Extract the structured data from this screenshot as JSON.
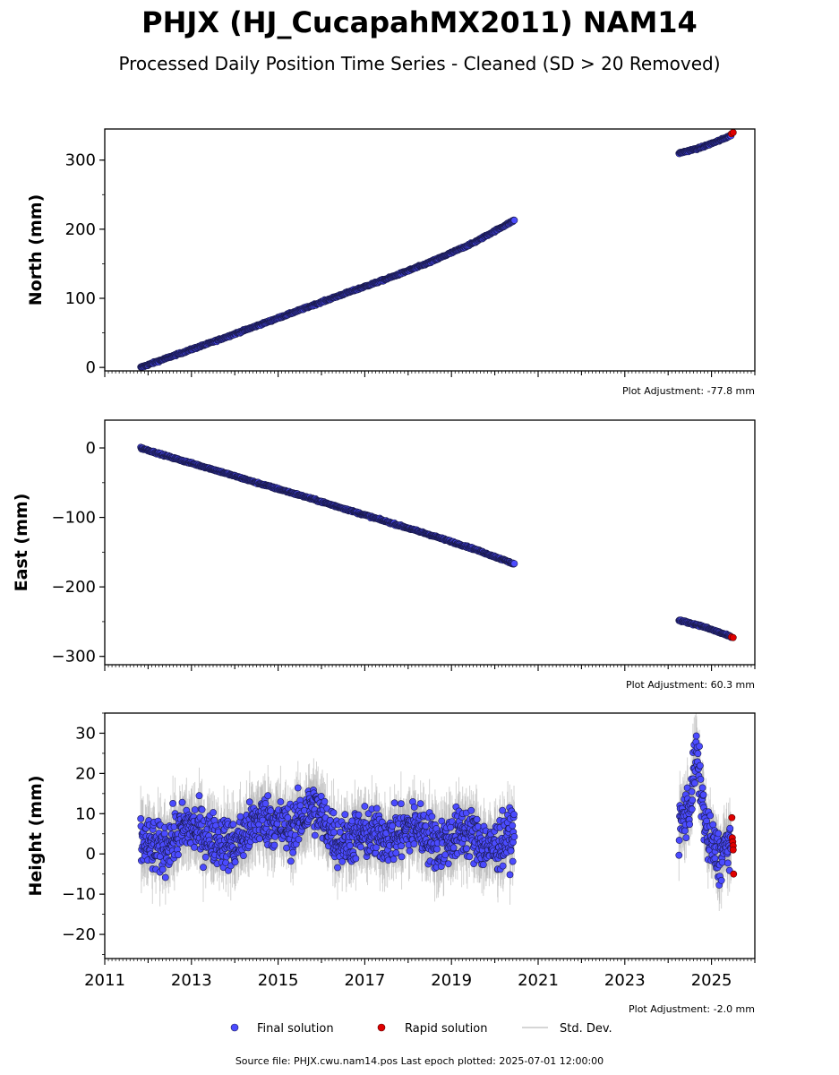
{
  "title": "PHJX (HJ_CucapahMX2011) NAM14",
  "subtitle": "Processed Daily Position Time Series - Cleaned (SD > 20 Removed)",
  "source": "Source file: PHJX.cwu.nam14.pos  Last epoch plotted: 2025-07-01 12:00:00",
  "legend": {
    "final": "Final solution",
    "rapid": "Rapid solution",
    "stddev": "Std. Dev."
  },
  "colors": {
    "final": "#4b4bff",
    "final_edge": "#1a1a4d",
    "rapid": "#e00000",
    "stddev": "#b5b5b5"
  },
  "chart_data": [
    {
      "type": "scatter",
      "ylabel": "North (mm)",
      "adjustment": "Plot Adjustment: -77.8 mm",
      "xlim": [
        2011,
        2026
      ],
      "ylim": [
        -5,
        345
      ],
      "yticks": [
        0,
        100,
        200,
        300
      ],
      "ytick_labels": [
        "0",
        "100",
        "200",
        "300"
      ],
      "series": [
        {
          "name": "Final solution",
          "x": [
            2011.83,
            2012.5,
            2013.5,
            2014.5,
            2015.5,
            2016.5,
            2017.5,
            2018.5,
            2019.5,
            2020.45,
            2024.25,
            2024.75,
            2025.25,
            2025.45
          ],
          "y": [
            0,
            15,
            37,
            60,
            83,
            106,
            128,
            152,
            180,
            213,
            310,
            318,
            330,
            336
          ]
        },
        {
          "name": "Rapid solution",
          "x": [
            2025.46,
            2025.5
          ],
          "y": [
            338,
            340
          ]
        }
      ]
    },
    {
      "type": "scatter",
      "ylabel": "East (mm)",
      "adjustment": "Plot Adjustment: 60.3 mm",
      "xlim": [
        2011,
        2026
      ],
      "ylim": [
        -312,
        40
      ],
      "yticks": [
        0,
        -100,
        -200,
        -300
      ],
      "ytick_labels": [
        "0",
        "−100",
        "−200",
        "−300"
      ],
      "series": [
        {
          "name": "Final solution",
          "x": [
            2011.83,
            2012.5,
            2013.5,
            2014.5,
            2015.5,
            2016.5,
            2017.5,
            2018.5,
            2019.5,
            2020.45,
            2024.25,
            2024.75,
            2025.25,
            2025.45
          ],
          "y": [
            0,
            -13,
            -31,
            -50,
            -68,
            -87,
            -106,
            -125,
            -145,
            -167,
            -248,
            -256,
            -267,
            -272
          ]
        },
        {
          "name": "Rapid solution",
          "x": [
            2025.46,
            2025.5
          ],
          "y": [
            -272,
            -273
          ]
        }
      ]
    },
    {
      "type": "scatter",
      "ylabel": "Height (mm)",
      "adjustment": "Plot Adjustment: -2.0 mm",
      "xlim": [
        2011,
        2026
      ],
      "ylim": [
        -26,
        35
      ],
      "yticks": [
        -20,
        -10,
        0,
        10,
        20,
        30
      ],
      "ytick_labels": [
        "−20",
        "−10",
        "0",
        "10",
        "20",
        "30"
      ],
      "series": [
        {
          "name": "Final solution",
          "x": [
            2011.83,
            2012.3,
            2012.9,
            2013.5,
            2014.0,
            2014.6,
            2015.3,
            2015.8,
            2016.4,
            2017.0,
            2017.6,
            2018.2,
            2018.7,
            2019.3,
            2019.9,
            2020.45,
            2024.25,
            2024.5,
            2024.65,
            2024.9,
            2025.2,
            2025.4
          ],
          "y": [
            3,
            1,
            7,
            4,
            2,
            9,
            6,
            12,
            3,
            5,
            4,
            7,
            2,
            6,
            1,
            5,
            7,
            12,
            25,
            4,
            -1,
            3
          ],
          "err": [
            4,
            5,
            5,
            4,
            5,
            5,
            5,
            5,
            4,
            5,
            5,
            5,
            4,
            5,
            5,
            4,
            5,
            5,
            6,
            5,
            4,
            4
          ]
        },
        {
          "name": "Rapid solution",
          "x": [
            2025.47,
            2025.48,
            2025.49,
            2025.5,
            2025.5,
            2025.51
          ],
          "y": [
            9,
            4,
            3,
            2,
            1,
            -5
          ]
        }
      ]
    }
  ],
  "xtick_labels": [
    "2011",
    "2013",
    "2015",
    "2017",
    "2019",
    "2021",
    "2023",
    "2025"
  ]
}
